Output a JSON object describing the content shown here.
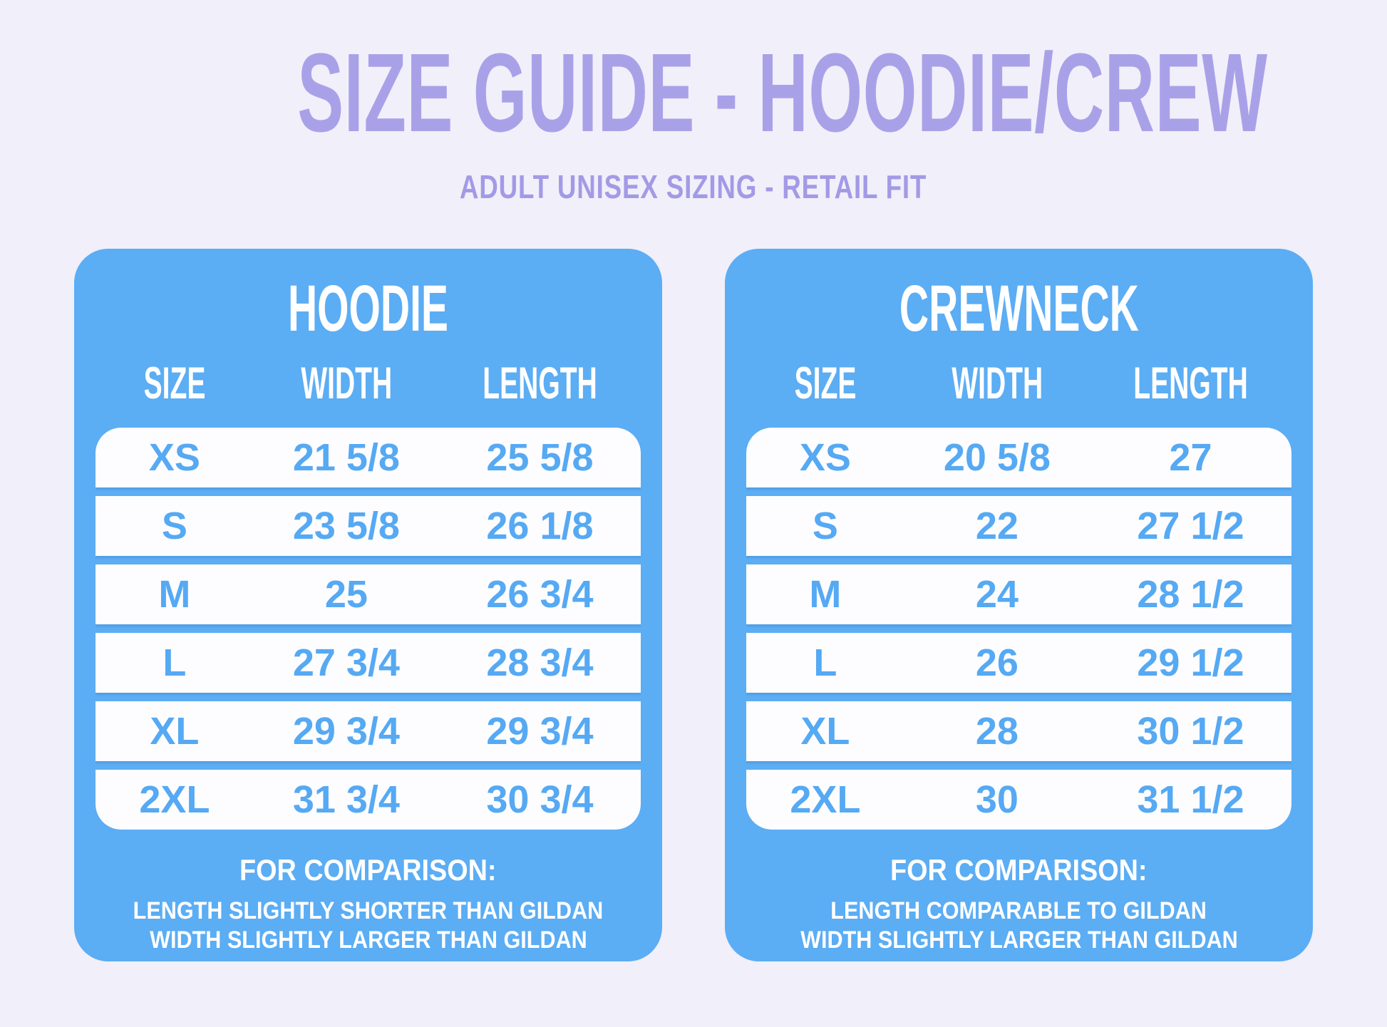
{
  "page": {
    "title": "SIZE GUIDE - HOODIE/CREW",
    "subtitle": "ADULT UNISEX SIZING - RETAIL FIT"
  },
  "columns": {
    "size": "SIZE",
    "width": "WIDTH",
    "length": "LENGTH"
  },
  "tables": [
    {
      "name": "HOODIE",
      "rows": [
        {
          "size": "XS",
          "width": "21 5/8",
          "length": "25 5/8"
        },
        {
          "size": "S",
          "width": "23 5/8",
          "length": "26 1/8"
        },
        {
          "size": "M",
          "width": "25",
          "length": "26 3/4"
        },
        {
          "size": "L",
          "width": "27 3/4",
          "length": "28 3/4"
        },
        {
          "size": "XL",
          "width": "29 3/4",
          "length": "29 3/4"
        },
        {
          "size": "2XL",
          "width": "31 3/4",
          "length": "30 3/4"
        }
      ],
      "comparison_heading": "FOR COMPARISON:",
      "comparison_lines": [
        "LENGTH SLIGHTLY SHORTER THAN GILDAN",
        "WIDTH SLIGHTLY LARGER THAN GILDAN"
      ]
    },
    {
      "name": "CREWNECK",
      "rows": [
        {
          "size": "XS",
          "width": "20 5/8",
          "length": "27"
        },
        {
          "size": "S",
          "width": "22",
          "length": "27 1/2"
        },
        {
          "size": "M",
          "width": "24",
          "length": "28 1/2"
        },
        {
          "size": "L",
          "width": "26",
          "length": "29 1/2"
        },
        {
          "size": "XL",
          "width": "28",
          "length": "30 1/2"
        },
        {
          "size": "2XL",
          "width": "30",
          "length": "31 1/2"
        }
      ],
      "comparison_heading": "FOR COMPARISON:",
      "comparison_lines": [
        "LENGTH COMPARABLE TO GILDAN",
        "WIDTH SLIGHTLY LARGER THAN GILDAN"
      ]
    }
  ],
  "colors": {
    "background": "#f1eff9",
    "title_purple": "#a9a1e8",
    "subtitle_purple": "#a39ae6",
    "card_blue": "#5badf4",
    "value_blue": "#56a9f3",
    "row_white": "#fdfdff"
  }
}
